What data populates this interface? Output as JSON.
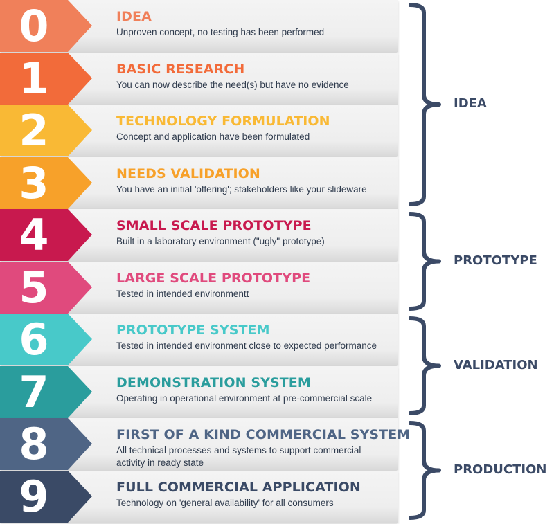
{
  "stages": [
    {
      "number": "0",
      "title": "IDEA",
      "description": "Unproven concept, no testing has been performed",
      "color": "#f0805a",
      "title_color": "#f0805a"
    },
    {
      "number": "1",
      "title": "BASIC RESEARCH",
      "description": "You can now describe the need(s) but have no evidence",
      "color": "#f26b3a",
      "title_color": "#f26b3a"
    },
    {
      "number": "2",
      "title": "TECHNOLOGY FORMULATION",
      "description": "Concept and application have been formulated",
      "color": "#f9b935",
      "title_color": "#f9b935"
    },
    {
      "number": "3",
      "title": "NEEDS VALIDATION",
      "description": "You have an initial 'offering'; stakeholders like your slideware",
      "color": "#f7a12a",
      "title_color": "#f7a12a"
    },
    {
      "number": "4",
      "title": "SMALL SCALE PROTOTYPE",
      "description": "Built in a laboratory environment (\"ugly\" prototype)",
      "color": "#c8194e",
      "title_color": "#c8194e"
    },
    {
      "number": "5",
      "title": "LARGE SCALE PROTOTYPE",
      "description": "Tested in intended environmentt",
      "color": "#e04a7d",
      "title_color": "#e04a7d"
    },
    {
      "number": "6",
      "title": "PROTOTYPE SYSTEM",
      "description": "Tested in intended environment close to expected performance",
      "color": "#48c9c9",
      "title_color": "#48c9c9"
    },
    {
      "number": "7",
      "title": "DEMONSTRATION SYSTEM",
      "description": "Operating in operational environment at pre-commercial scale",
      "color": "#2a9d9d",
      "title_color": "#2a9d9d"
    },
    {
      "number": "8",
      "title": "FIRST OF A KIND COMMERCIAL SYSTEM",
      "description": "All technical processes and systems to support commercial activity in ready state",
      "color": "#4f6585",
      "title_color": "#4f6585"
    },
    {
      "number": "9",
      "title": "FULL COMMERCIAL APPLICATION",
      "description": "Technology on 'general availability' for all consumers",
      "color": "#3a4a66",
      "title_color": "#3a4a66"
    }
  ],
  "phases": [
    {
      "label": "IDEA",
      "from": 0,
      "to": 3
    },
    {
      "label": "PROTOTYPE",
      "from": 4,
      "to": 5
    },
    {
      "label": "VALIDATION",
      "from": 6,
      "to": 7
    },
    {
      "label": "PRODUCTION",
      "from": 8,
      "to": 9
    }
  ],
  "brace_color": "#3b4a66"
}
